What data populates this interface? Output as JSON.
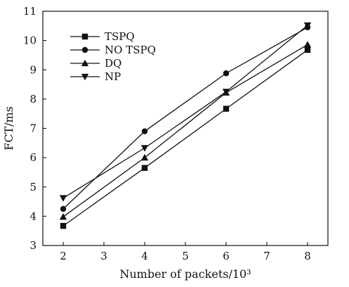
{
  "chart_data": {
    "type": "line",
    "x": [
      2,
      4,
      6,
      8
    ],
    "xlabel": "Number of packets/10³",
    "ylabel": "FCT/ms",
    "xlim": [
      1.5,
      8.5
    ],
    "ylim": [
      3,
      11
    ],
    "xticks": [
      2,
      3,
      4,
      5,
      6,
      7,
      8
    ],
    "yticks": [
      3,
      4,
      5,
      6,
      7,
      8,
      9,
      10,
      11
    ],
    "grid": false,
    "legend_position": "top-left",
    "series": [
      {
        "name": "TSPQ",
        "marker": "square",
        "values": [
          3.67,
          5.65,
          7.67,
          9.68
        ]
      },
      {
        "name": "NO TSPQ",
        "marker": "circle",
        "values": [
          4.25,
          6.9,
          8.88,
          10.45
        ]
      },
      {
        "name": "DQ",
        "marker": "triangle-up",
        "values": [
          3.98,
          6.0,
          8.22,
          9.86
        ]
      },
      {
        "name": "NP",
        "marker": "triangle-down",
        "values": [
          4.62,
          6.33,
          8.25,
          10.52
        ]
      }
    ],
    "line_color": "#111111"
  }
}
